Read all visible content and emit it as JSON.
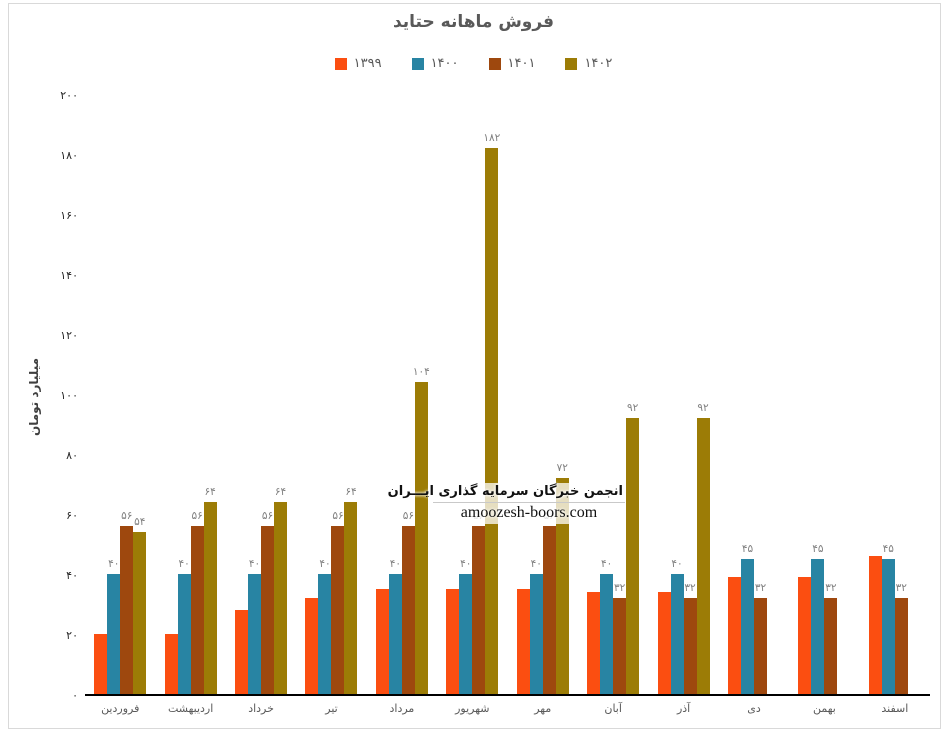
{
  "title": "فروش ماهانه حتاید",
  "watermark": {
    "line1": "انجمن خبرگان سرمایه گذاری ایـــران",
    "line2": "amoozesh-boors.com"
  },
  "chart_data": {
    "type": "bar",
    "title": "فروش ماهانه حتاید",
    "xlabel": "",
    "ylabel": "میلیارد تومان",
    "ylim": [
      0,
      200
    ],
    "ytick_step": 20,
    "ytick_values": [
      0,
      20,
      40,
      60,
      80,
      100,
      120,
      140,
      160,
      180,
      200
    ],
    "ytick_labels": [
      "۰",
      "۲۰",
      "۴۰",
      "۶۰",
      "۸۰",
      "۱۰۰",
      "۱۲۰",
      "۱۴۰",
      "۱۶۰",
      "۱۸۰",
      "۲۰۰"
    ],
    "grid": false,
    "legend_position": "top",
    "categories": [
      "فروردین",
      "اردیبهشت",
      "خرداد",
      "تیر",
      "مرداد",
      "شهریور",
      "مهر",
      "آبان",
      "آذر",
      "دی",
      "بهمن",
      "اسفند"
    ],
    "series": [
      {
        "name": "۱۳۹۹",
        "color": "#fb4e11",
        "values": [
          20,
          20,
          28,
          32,
          35,
          35,
          35,
          34,
          34,
          39,
          39,
          46
        ],
        "labels_shown": [
          null,
          null,
          null,
          null,
          null,
          null,
          null,
          null,
          null,
          null,
          null,
          null
        ]
      },
      {
        "name": "۱۴۰۰",
        "color": "#2884a3",
        "values": [
          40,
          40,
          40,
          40,
          40,
          40,
          40,
          40,
          40,
          45,
          45,
          45
        ],
        "labels_shown": [
          "۴۰",
          "۴۰",
          "۴۰",
          "۴۰",
          "۴۰",
          "۴۰",
          "۴۰",
          "۴۰",
          "۴۰",
          "۴۵",
          "۴۵",
          "۴۵"
        ]
      },
      {
        "name": "۱۴۰۱",
        "color": "#9e480e",
        "values": [
          56,
          56,
          56,
          56,
          56,
          56,
          56,
          32,
          32,
          32,
          32,
          32
        ],
        "labels_shown": [
          "۵۶",
          "۵۶",
          "۵۶",
          "۵۶",
          "۵۶",
          "۵۶",
          "۵۶",
          "۳۲",
          "۳۲",
          "۳۲",
          "۳۲",
          "۳۲"
        ]
      },
      {
        "name": "۱۴۰۲",
        "color": "#9c7c06",
        "values": [
          54,
          64,
          64,
          64,
          104,
          182,
          72,
          92,
          92,
          null,
          null,
          null
        ],
        "labels_shown": [
          "۵۴",
          "۶۴",
          "۶۴",
          "۶۴",
          "۱۰۴",
          "۱۸۲",
          "۷۲",
          "۹۲",
          "۹۲",
          null,
          null,
          null
        ]
      }
    ]
  },
  "style": {
    "frame_border": "#d9d9d9",
    "title_color": "#595959",
    "tick_color": "#262626",
    "data_label_color": "#7f7f7f",
    "axis_line_color": "#000000"
  }
}
